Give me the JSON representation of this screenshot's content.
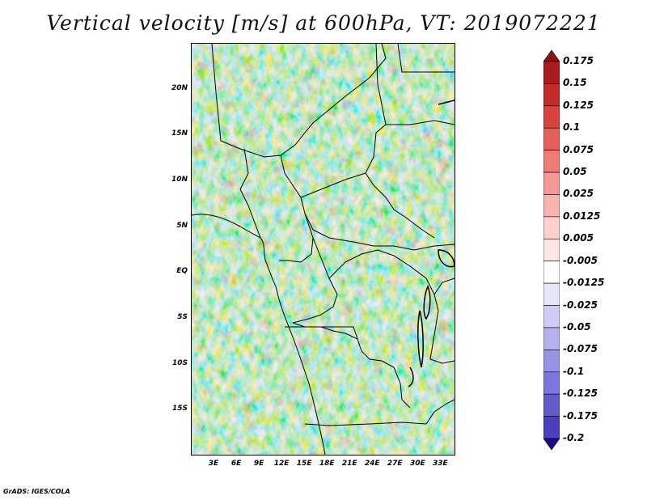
{
  "title": "Vertical velocity [m/s] at 600hPa, VT: 2019072221",
  "credit": "GrADS: IGES/COLA",
  "map": {
    "lon_range": [
      0,
      35
    ],
    "lat_range": [
      -20,
      25
    ],
    "lat_ticks": [
      {
        "value": 20,
        "label": "20N"
      },
      {
        "value": 15,
        "label": "15N"
      },
      {
        "value": 10,
        "label": "10N"
      },
      {
        "value": 5,
        "label": "5N"
      },
      {
        "value": 0,
        "label": "EQ"
      },
      {
        "value": -5,
        "label": "5S"
      },
      {
        "value": -10,
        "label": "10S"
      },
      {
        "value": -15,
        "label": "15S"
      }
    ],
    "lon_ticks": [
      {
        "value": 3,
        "label": "3E"
      },
      {
        "value": 6,
        "label": "6E"
      },
      {
        "value": 9,
        "label": "9E"
      },
      {
        "value": 12,
        "label": "12E"
      },
      {
        "value": 15,
        "label": "15E"
      },
      {
        "value": 18,
        "label": "18E"
      },
      {
        "value": 21,
        "label": "21E"
      },
      {
        "value": 24,
        "label": "24E"
      },
      {
        "value": 27,
        "label": "27E"
      },
      {
        "value": 30,
        "label": "30E"
      },
      {
        "value": 33,
        "label": "33E"
      }
    ]
  },
  "colorbar": {
    "levels": [
      {
        "label": "0.175",
        "color": "#ab1c22"
      },
      {
        "label": "0.15",
        "color": "#c52b2d"
      },
      {
        "label": "0.125",
        "color": "#d9423e"
      },
      {
        "label": "0.1",
        "color": "#e55e58"
      },
      {
        "label": "0.075",
        "color": "#ed7c76"
      },
      {
        "label": "0.05",
        "color": "#f39892"
      },
      {
        "label": "0.025",
        "color": "#f8b5b0"
      },
      {
        "label": "0.0125",
        "color": "#fbd0cd"
      },
      {
        "label": "0.005",
        "color": "#fde6e4"
      },
      {
        "label": "-0.005",
        "color": "#ffffff"
      },
      {
        "label": "-0.0125",
        "color": "#e6e6fb"
      },
      {
        "label": "-0.025",
        "color": "#cfcdf6"
      },
      {
        "label": "-0.05",
        "color": "#b4b1f0"
      },
      {
        "label": "-0.075",
        "color": "#9893e6"
      },
      {
        "label": "-0.1",
        "color": "#7d76db"
      },
      {
        "label": "-0.125",
        "color": "#645ccd"
      },
      {
        "label": "-0.175",
        "color": "#4a3fbf"
      },
      {
        "label": "-0.2",
        "color": "#3323a8"
      }
    ],
    "top_extension_color": "#8e0f18",
    "bottom_extension_color": "#1e0a8c"
  }
}
